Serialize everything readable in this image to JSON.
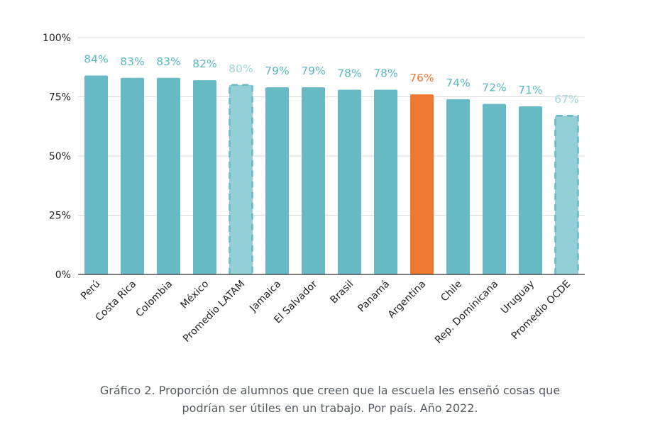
{
  "chart_data": {
    "type": "bar",
    "categories": [
      "Perú",
      "Costa Rica",
      "Colombia",
      "México",
      "Promedio LATAM",
      "Jamaica",
      "El Salvador",
      "Brasil",
      "Panamá",
      "Argentina",
      "Chile",
      "Rep. Dominicana",
      "Uruguay",
      "Promedio OCDE"
    ],
    "values": [
      84,
      83,
      83,
      82,
      80,
      79,
      79,
      78,
      78,
      76,
      74,
      72,
      71,
      67
    ],
    "data_labels": [
      "84%",
      "83%",
      "83%",
      "82%",
      "80%",
      "79%",
      "79%",
      "78%",
      "78%",
      "76%",
      "74%",
      "72%",
      "71%",
      "67%"
    ],
    "bar_styles": [
      "normal",
      "normal",
      "normal",
      "normal",
      "average",
      "normal",
      "normal",
      "normal",
      "normal",
      "highlight",
      "normal",
      "normal",
      "normal",
      "average"
    ],
    "ylim": [
      0,
      100
    ],
    "yticks": [
      0,
      25,
      50,
      75,
      100
    ],
    "ytick_labels": [
      "0%",
      "25%",
      "50%",
      "75%",
      "100%"
    ],
    "grid": true,
    "colors": {
      "normal": "#67b9c4",
      "average": "#93cfd7",
      "highlight": "#ee7831",
      "label_normal": "#5cb7c4",
      "label_average": "#a2d6dc",
      "label_highlight": "#ee7831",
      "grid": "#dadada",
      "axis": "#333333"
    }
  },
  "caption": {
    "line1": "Gráfico 2. Proporción de alumnos que creen que la escuela les enseñó cosas que",
    "line2": "podrían ser útiles en un trabajo. Por país. Año 2022."
  }
}
